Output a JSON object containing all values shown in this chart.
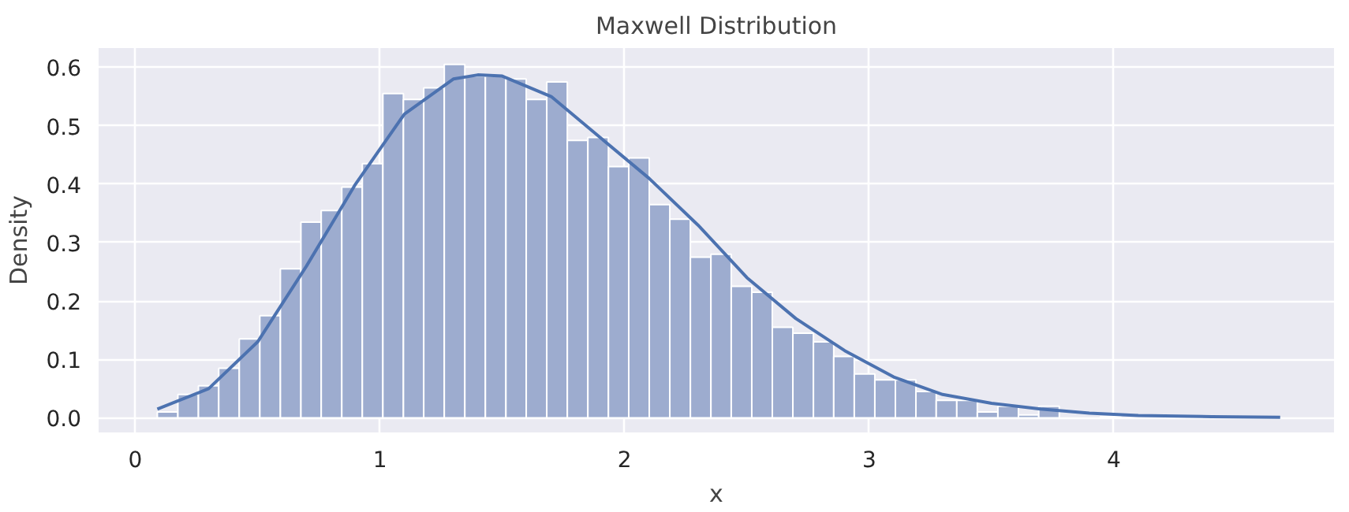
{
  "chart_data": {
    "type": "histogram",
    "title": "Maxwell Distribution",
    "xlabel": "x",
    "ylabel": "Density",
    "bins": [
      0.09,
      0.174,
      0.258,
      0.341,
      0.425,
      0.509,
      0.593,
      0.677,
      0.76,
      0.844,
      0.928,
      1.012,
      1.096,
      1.179,
      1.263,
      1.347,
      1.431,
      1.515,
      1.598,
      1.682,
      1.766,
      1.85,
      1.934,
      2.017,
      2.101,
      2.185,
      2.269,
      2.353,
      2.436,
      2.52,
      2.604,
      2.688,
      2.772,
      2.855,
      2.939,
      3.023,
      3.107,
      3.191,
      3.274,
      3.358,
      3.442,
      3.526,
      3.61,
      3.693,
      3.777,
      3.861,
      3.945,
      4.029,
      4.112,
      4.196,
      4.28,
      4.364,
      4.448,
      4.531,
      4.615,
      4.699
    ],
    "values": [
      0.01,
      0.04,
      0.055,
      0.085,
      0.135,
      0.175,
      0.255,
      0.335,
      0.355,
      0.395,
      0.435,
      0.555,
      0.545,
      0.565,
      0.605,
      0.585,
      0.585,
      0.58,
      0.545,
      0.575,
      0.475,
      0.48,
      0.43,
      0.445,
      0.365,
      0.34,
      0.275,
      0.28,
      0.225,
      0.215,
      0.155,
      0.145,
      0.13,
      0.105,
      0.075,
      0.065,
      0.065,
      0.045,
      0.03,
      0.03,
      0.01,
      0.02,
      0.005,
      0.02,
      0,
      0,
      0.002,
      0,
      0,
      0,
      0,
      0,
      0,
      0,
      0
    ],
    "color": "#9daccf",
    "series": [
      {
        "type": "line",
        "color": "#4c72b0",
        "x": [
          0.09,
          0.3,
          0.5,
          0.7,
          0.9,
          1.1,
          1.3,
          1.4,
          1.5,
          1.7,
          1.9,
          2.1,
          2.3,
          2.5,
          2.7,
          2.9,
          3.1,
          3.3,
          3.5,
          3.7,
          3.9,
          4.1,
          4.4,
          4.68
        ],
        "values": [
          0.015,
          0.05,
          0.13,
          0.26,
          0.4,
          0.52,
          0.58,
          0.587,
          0.585,
          0.55,
          0.48,
          0.41,
          0.33,
          0.24,
          0.17,
          0.115,
          0.07,
          0.04,
          0.025,
          0.015,
          0.008,
          0.004,
          0.002,
          0.001
        ]
      }
    ],
    "xlim": [
      -0.15,
      4.9
    ],
    "ylim": [
      -0.025,
      0.633
    ],
    "xticks": [
      0,
      1,
      2,
      3,
      4
    ],
    "yticks": [
      {
        "value": 0,
        "label": "0.0"
      },
      {
        "value": 0.1,
        "label": "0.1"
      },
      {
        "value": 0.2,
        "label": "0.2"
      },
      {
        "value": 0.3,
        "label": "0.3"
      },
      {
        "value": 0.4,
        "label": "0.4"
      },
      {
        "value": 0.5,
        "label": "0.5"
      },
      {
        "value": 0.6,
        "label": "0.6"
      }
    ],
    "grid": true
  }
}
